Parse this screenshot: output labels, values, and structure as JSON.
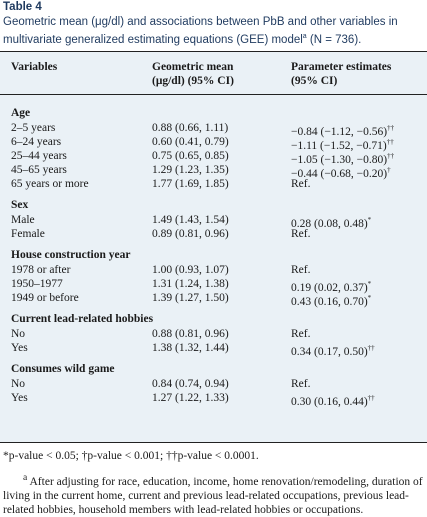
{
  "table_label": "Table 4",
  "caption": {
    "text": "Geometric mean (μg/dl) and associations between PbB and other variables in multivariate generalized estimating equations (GEE) model",
    "marker": "a",
    "n_text": " (N = 736)."
  },
  "headers": {
    "col1": "Variables",
    "col2_line1": "Geometric mean",
    "col2_line2": "(μg/dl) (95% CI)",
    "col3_line1": "Parameter estimates",
    "col3_line2": "(95% CI)"
  },
  "rows": [
    {
      "type": "section",
      "label": "Age",
      "gm": "",
      "pe": "",
      "sig": ""
    },
    {
      "type": "data",
      "label": "2–5 years",
      "gm": "0.88 (0.66, 1.11)",
      "pe": "−0.84 (−1.12, −0.56)",
      "sig": "††"
    },
    {
      "type": "data",
      "label": "6–24 years",
      "gm": "0.60 (0.41, 0.79)",
      "pe": "−1.11 (−1.52, −0.71)",
      "sig": "††"
    },
    {
      "type": "data",
      "label": "25–44 years",
      "gm": "0.75 (0.65, 0.85)",
      "pe": "−1.05 (−1.30, −0.80)",
      "sig": "††"
    },
    {
      "type": "data",
      "label": "45–65 years",
      "gm": "1.29 (1.23, 1.35)",
      "pe": "−0.44 (−0.68, −0.20)",
      "sig": "†"
    },
    {
      "type": "data",
      "label": "65 years or more",
      "gm": "1.77 (1.69, 1.85)",
      "pe": "Ref.",
      "sig": ""
    },
    {
      "type": "section",
      "label": "Sex",
      "gm": "",
      "pe": "",
      "sig": ""
    },
    {
      "type": "data",
      "label": "Male",
      "gm": "1.49 (1.43, 1.54)",
      "pe": "0.28 (0.08, 0.48)",
      "sig": "*"
    },
    {
      "type": "data",
      "label": "Female",
      "gm": "0.89 (0.81, 0.96)",
      "pe": "Ref.",
      "sig": ""
    },
    {
      "type": "section",
      "label": "House construction year",
      "gm": "",
      "pe": "",
      "sig": ""
    },
    {
      "type": "data",
      "label": "1978 or after",
      "gm": "1.00 (0.93, 1.07)",
      "pe": "Ref.",
      "sig": ""
    },
    {
      "type": "data",
      "label": "1950–1977",
      "gm": "1.31 (1.24, 1.38)",
      "pe": "0.19 (0.02, 0.37)",
      "sig": "*"
    },
    {
      "type": "data",
      "label": "1949 or before",
      "gm": "1.39 (1.27, 1.50)",
      "pe": "0.43 (0.16, 0.70)",
      "sig": "*"
    },
    {
      "type": "section",
      "label": "Current lead-related hobbies",
      "gm": "",
      "pe": "",
      "sig": ""
    },
    {
      "type": "data",
      "label": "No",
      "gm": "0.88 (0.81, 0.96)",
      "pe": "Ref.",
      "sig": ""
    },
    {
      "type": "data",
      "label": "Yes",
      "gm": "1.38 (1.32, 1.44)",
      "pe": "0.34 (0.17, 0.50)",
      "sig": "††"
    },
    {
      "type": "section",
      "label": "Consumes wild game",
      "gm": "",
      "pe": "",
      "sig": ""
    },
    {
      "type": "data",
      "label": "No",
      "gm": "0.84 (0.74, 0.94)",
      "pe": "Ref.",
      "sig": ""
    },
    {
      "type": "data",
      "label": "Yes",
      "gm": "1.27 (1.22, 1.33)",
      "pe": "0.30 (0.16, 0.44)",
      "sig": "††"
    }
  ],
  "footnotes": {
    "significance": "*p-value < 0.05; †p-value < 0.001; ††p-value < 0.0001.",
    "marker": "a",
    "adjustment": " After adjusting for race, education, income, home renovation/remodeling, duration of living in the current home, current and previous lead-related occupations, previous lead-related hobbies, household members with lead-related hobbies or occupations."
  }
}
